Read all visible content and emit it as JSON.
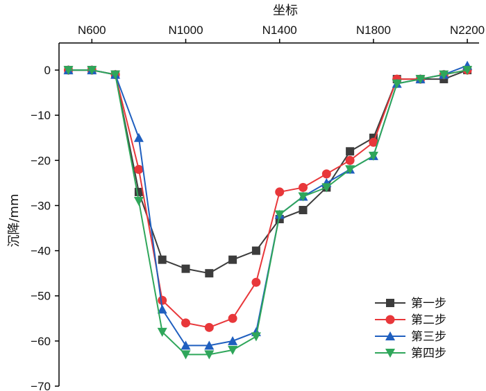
{
  "chart_data": {
    "type": "line",
    "xlabel": "坐标",
    "ylabel": "沉降/mm",
    "x_ticks": [
      "N600",
      "N1000",
      "N1400",
      "N1800",
      "N2200"
    ],
    "x_tick_values": [
      600,
      1000,
      1400,
      1800,
      2200
    ],
    "xlim": [
      460,
      2250
    ],
    "ylim": [
      -70,
      6
    ],
    "y_ticks": [
      0,
      -10,
      -20,
      -30,
      -40,
      -50,
      -60,
      -70
    ],
    "x": [
      500,
      600,
      700,
      800,
      900,
      1000,
      1100,
      1200,
      1300,
      1400,
      1500,
      1600,
      1700,
      1800,
      1900,
      2000,
      2100,
      2200
    ],
    "legend_position": "bottom-right",
    "series": [
      {
        "name": "第一步",
        "color": "#3c3c3c",
        "marker": "square",
        "values": [
          0,
          0,
          -1,
          -27,
          -42,
          -44,
          -45,
          -42,
          -40,
          -33,
          -31,
          -26,
          -18,
          -15,
          -2,
          -2,
          -2,
          0
        ]
      },
      {
        "name": "第二步",
        "color": "#e8373a",
        "marker": "circle",
        "values": [
          0,
          0,
          -1,
          -22,
          -51,
          -56,
          -57,
          -55,
          -47,
          -27,
          -26,
          -23,
          -20,
          -16,
          -2,
          -2,
          -1,
          0
        ]
      },
      {
        "name": "第三步",
        "color": "#1f5fbf",
        "marker": "triangle-up",
        "values": [
          0,
          0,
          -1,
          -15,
          -53,
          -61,
          -61,
          -60,
          -58,
          -32,
          -28,
          -25,
          -22,
          -19,
          -3,
          -2,
          -1,
          1
        ]
      },
      {
        "name": "第四步",
        "color": "#2fa65a",
        "marker": "triangle-down",
        "values": [
          0,
          0,
          -1,
          -29,
          -58,
          -63,
          -63,
          -62,
          -59,
          -32,
          -28,
          -26,
          -22,
          -19,
          -3,
          -2,
          -1,
          0
        ]
      }
    ]
  }
}
